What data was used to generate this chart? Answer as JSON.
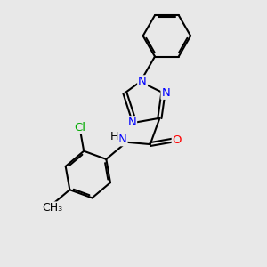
{
  "bg_color": "#e8e8e8",
  "bond_color": "#000000",
  "bond_width": 1.5,
  "atom_colors": {
    "N": "#0000ff",
    "O": "#ff0000",
    "Cl": "#00aa00",
    "C": "#000000"
  },
  "font_size": 9.5
}
